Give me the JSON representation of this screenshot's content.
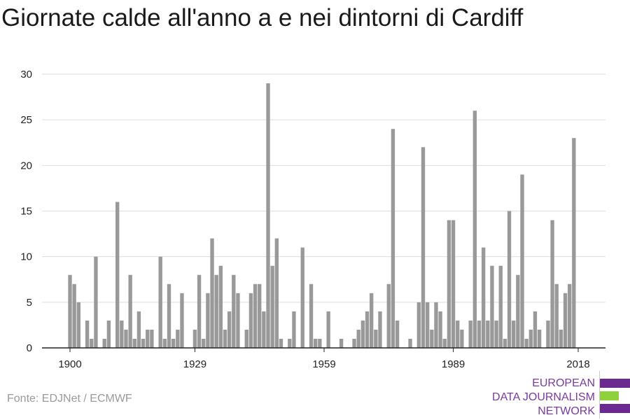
{
  "title": "Giornate calde all'anno a e nei dintorni di Cardiff",
  "source": "Fonte: EDJNet / ECMWF",
  "logo": {
    "lines": [
      "EUROPEAN",
      "DATA JOURNALISM",
      "NETWORK"
    ],
    "text_color": "#7a3a9e",
    "bar_colors": [
      "#6b2a8f",
      "#8fd13a",
      "#6b2a8f"
    ]
  },
  "chart_data": {
    "type": "bar",
    "title": "Giornate calde all'anno a e nei dintorni di Cardiff",
    "xlabel": "",
    "ylabel": "",
    "x_ticks": [
      1900,
      1929,
      1959,
      1989,
      2018
    ],
    "y_ticks": [
      0,
      5,
      10,
      15,
      20,
      25,
      30
    ],
    "ylim": [
      0,
      30
    ],
    "xlim": [
      1900,
      2018
    ],
    "grid": true,
    "bar_color": "#999999",
    "start_year": 1900,
    "values": [
      8,
      7,
      5,
      0,
      3,
      1,
      10,
      0,
      1,
      3,
      0,
      16,
      3,
      2,
      8,
      1,
      4,
      1,
      2,
      2,
      0,
      10,
      1,
      7,
      1,
      2,
      6,
      0,
      0,
      2,
      8,
      1,
      6,
      12,
      8,
      9,
      2,
      4,
      8,
      6,
      0,
      2,
      6,
      7,
      7,
      4,
      29,
      9,
      12,
      1,
      0,
      1,
      4,
      0,
      11,
      0,
      7,
      1,
      1,
      0,
      4,
      0,
      0,
      1,
      0,
      0,
      1,
      2,
      3,
      4,
      6,
      2,
      4,
      0,
      7,
      24,
      3,
      0,
      0,
      1,
      0,
      5,
      22,
      5,
      2,
      5,
      4,
      1,
      14,
      14,
      3,
      2,
      0,
      3,
      26,
      3,
      11,
      3,
      9,
      3,
      9,
      1,
      15,
      3,
      8,
      19,
      1,
      2,
      4,
      2,
      0,
      3,
      14,
      7,
      2,
      6,
      7,
      23
    ]
  }
}
